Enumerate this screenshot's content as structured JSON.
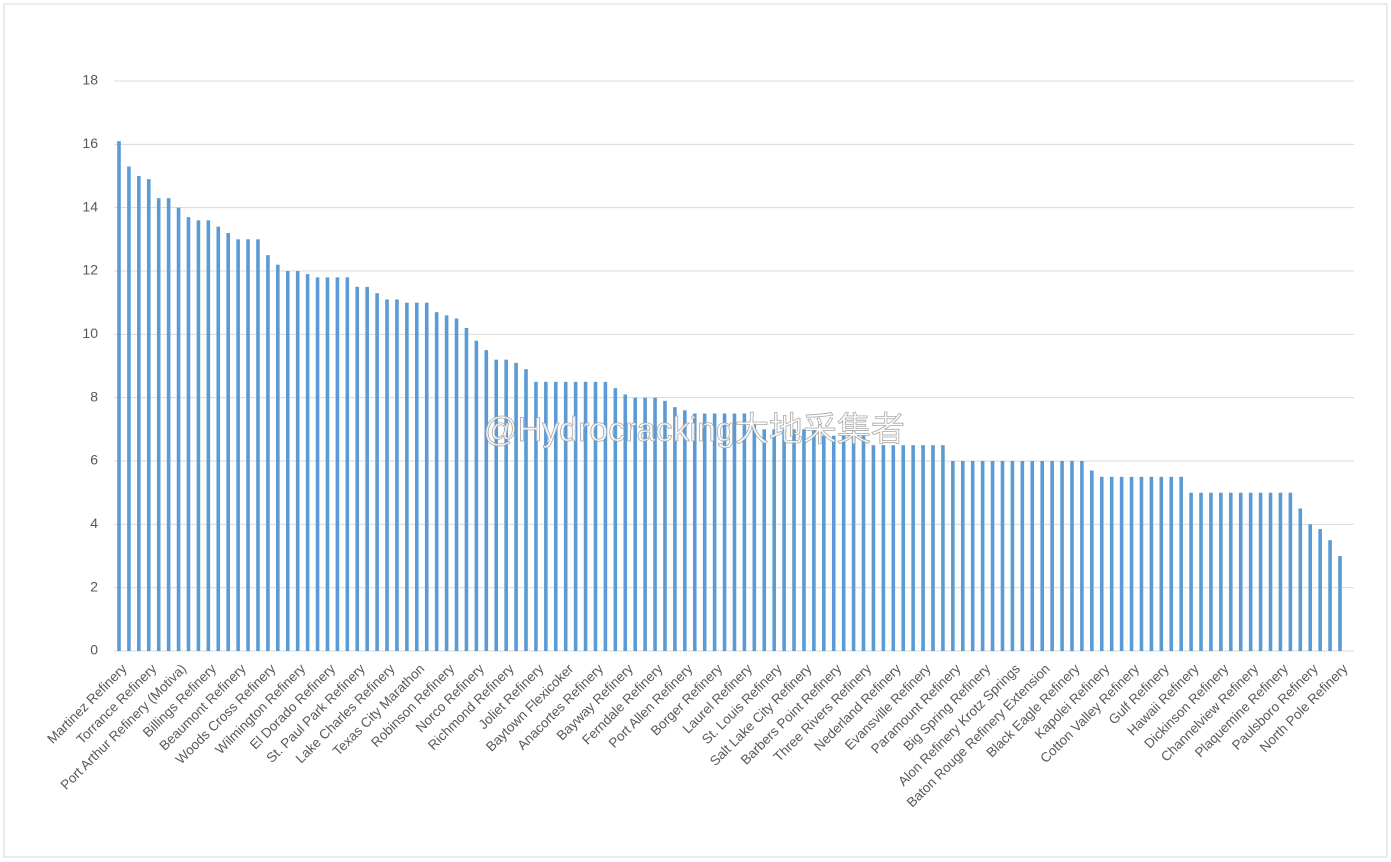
{
  "chart_data": {
    "type": "bar",
    "watermark": "@Hydrocracking大地采集者",
    "color": "#5b9bd5",
    "grid": true,
    "ylim": [
      0,
      18
    ],
    "yticks": [
      0,
      2,
      4,
      6,
      8,
      10,
      12,
      14,
      16,
      18
    ],
    "categories": [
      "Martinez Refinery",
      null,
      null,
      "Torrance Refinery",
      null,
      null,
      "Port Arthur Refinery (Motiva)",
      null,
      null,
      "Billings Refinery",
      null,
      null,
      "Beaumont Refinery",
      null,
      null,
      "Woods Cross Refinery",
      null,
      null,
      "Wilmington Refinery",
      null,
      null,
      "El Dorado Refinery",
      null,
      null,
      "St. Paul Park Refinery",
      null,
      null,
      "Lake Charles Refinery",
      null,
      null,
      "Texas City Marathon",
      null,
      null,
      "Robinson Refinery",
      null,
      null,
      "Norco Refinery",
      null,
      null,
      "Richmond Refinery",
      null,
      null,
      "Joliet Refinery",
      null,
      null,
      "Baytown Flexicoker",
      null,
      null,
      "Anacortes Refinery",
      null,
      null,
      "Bayway Refinery",
      null,
      null,
      "Ferndale Refinery",
      null,
      null,
      "Port Allen Refinery",
      null,
      null,
      "Borger Refinery",
      null,
      null,
      "Laurel Refinery",
      null,
      null,
      "St. Louis Refinery",
      null,
      null,
      "Salt Lake City Refinery",
      null,
      null,
      "Barbers Point Refinery",
      null,
      null,
      "Three Rivers Refinery",
      null,
      null,
      "Nederland Refinery",
      null,
      null,
      "Evansville Refinery",
      null,
      null,
      "Paramount Refinery",
      null,
      null,
      "Big Spring Refinery",
      null,
      null,
      "Alon Refinery Krotz Springs",
      null,
      null,
      "Baton Rouge Refinery Extension",
      null,
      null,
      "Black Eagle Refinery",
      null,
      null,
      "Kapolei Refinery",
      null,
      null,
      "Cotton Valley Refinery",
      null,
      null,
      "Gulf Refinery",
      null,
      null,
      "Hawaii Refinery",
      null,
      null,
      "Dickinson Refinery",
      null,
      null,
      "Channelview Refinery",
      null,
      null,
      "Plaquemine Refinery",
      null,
      null,
      "Paulsboro Refinery",
      null,
      null,
      "North Pole Refinery"
    ],
    "values": [
      16.1,
      15.3,
      15.0,
      14.9,
      14.3,
      14.3,
      14.0,
      13.7,
      13.6,
      13.6,
      13.4,
      13.2,
      13.0,
      13.0,
      13.0,
      12.5,
      12.2,
      12.0,
      12.0,
      11.9,
      11.8,
      11.8,
      11.8,
      11.8,
      11.5,
      11.5,
      11.3,
      11.1,
      11.1,
      11.0,
      11.0,
      11.0,
      10.7,
      10.6,
      10.5,
      10.2,
      9.8,
      9.5,
      9.2,
      9.2,
      9.1,
      8.9,
      8.5,
      8.5,
      8.5,
      8.5,
      8.5,
      8.5,
      8.5,
      8.5,
      8.3,
      8.1,
      8.0,
      8.0,
      8.0,
      7.9,
      7.7,
      7.6,
      7.5,
      7.5,
      7.5,
      7.5,
      7.5,
      7.5,
      7.2,
      7.0,
      7.0,
      7.0,
      7.0,
      7.0,
      7.0,
      6.8,
      6.8,
      6.8,
      6.8,
      6.8,
      6.5,
      6.5,
      6.5,
      6.5,
      6.5,
      6.5,
      6.5,
      6.5,
      6.0,
      6.0,
      6.0,
      6.0,
      6.0,
      6.0,
      6.0,
      6.0,
      6.0,
      6.0,
      6.0,
      6.0,
      6.0,
      6.0,
      5.7,
      5.5,
      5.5,
      5.5,
      5.5,
      5.5,
      5.5,
      5.5,
      5.5,
      5.5,
      5.0,
      5.0,
      5.0,
      5.0,
      5.0,
      5.0,
      5.0,
      5.0,
      5.0,
      5.0,
      5.0,
      4.5,
      4.0,
      3.85,
      3.5,
      3.0
    ]
  }
}
